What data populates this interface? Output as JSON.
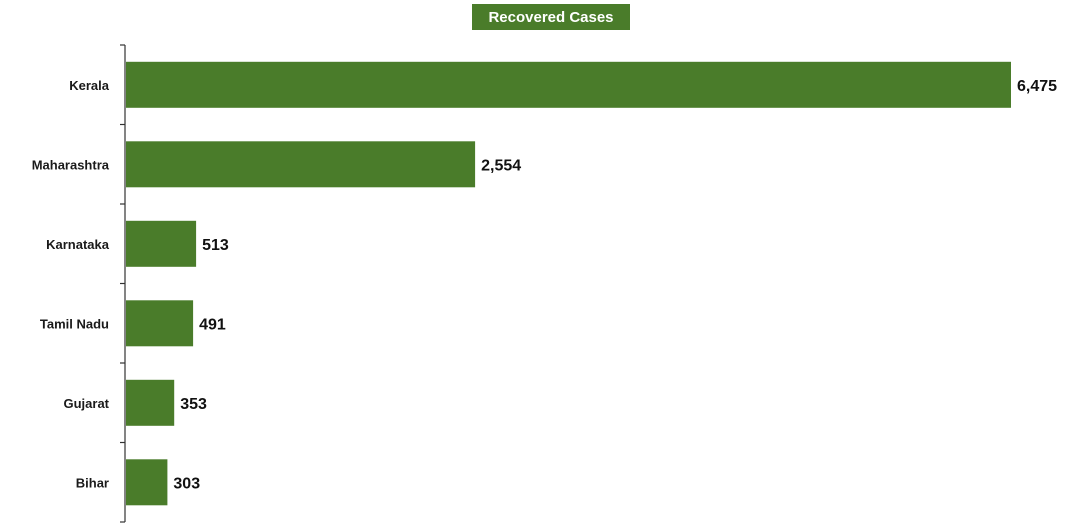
{
  "chart_data": {
    "type": "bar",
    "orientation": "horizontal",
    "title": "Recovered Cases",
    "categories": [
      "Kerala",
      "Maharashtra",
      "Karnataka",
      "Tamil Nadu",
      "Gujarat",
      "Bihar"
    ],
    "values": [
      6475,
      2554,
      513,
      491,
      353,
      303
    ],
    "value_labels": [
      "6,475",
      "2,554",
      "513",
      "491",
      "353",
      "303"
    ],
    "xlabel": "",
    "ylabel": "",
    "xlim": [
      0,
      6475
    ],
    "grid": false,
    "legend": "none",
    "bar_color": "#4a7c2a",
    "title_background": "#4a7c2a",
    "title_color": "#ffffff"
  }
}
